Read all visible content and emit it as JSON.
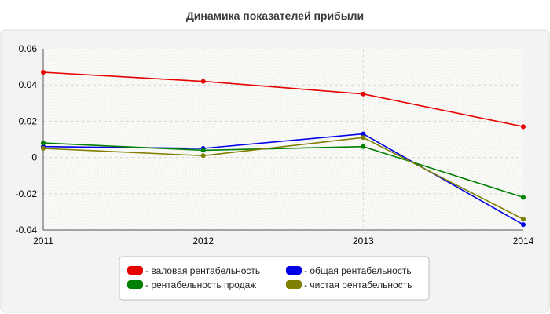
{
  "chart_data": {
    "type": "line",
    "title": "Динамика показателей прибыли",
    "xlabel": "",
    "ylabel": "",
    "x": [
      "2011",
      "2012",
      "2013",
      "2014"
    ],
    "ylim": [
      -0.04,
      0.06
    ],
    "yticks": [
      "0.06",
      "0.04",
      "0.02",
      "0",
      "-0.02",
      "-0.04"
    ],
    "grid": true,
    "legend_position": "bottom-center",
    "series": [
      {
        "name": "- валовая рентабельность",
        "color": "#e60000",
        "values": [
          0.047,
          0.042,
          0.035,
          0.017
        ]
      },
      {
        "name": "- общая рентабельность",
        "color": "#0000e6",
        "values": [
          0.006,
          0.005,
          0.013,
          -0.037
        ]
      },
      {
        "name": "- рентабельность продаж",
        "color": "#008000",
        "values": [
          0.008,
          0.004,
          0.006,
          -0.022
        ]
      },
      {
        "name": "- чистая рентабельность",
        "color": "#808000",
        "values": [
          0.005,
          0.001,
          0.011,
          -0.034
        ]
      }
    ]
  }
}
